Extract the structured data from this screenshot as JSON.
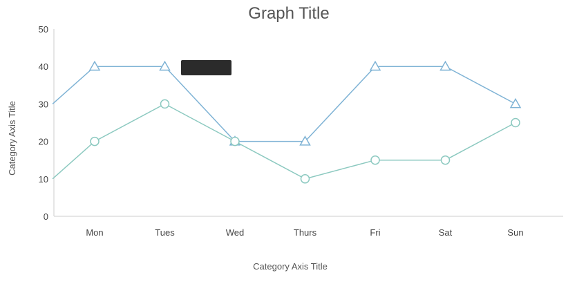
{
  "chart_data": {
    "type": "line",
    "title": "Graph Title",
    "xlabel": "Category Axis Title",
    "ylabel": "Category Axis Title",
    "categories": [
      "Mon",
      "Tues",
      "Wed",
      "Thurs",
      "Fri",
      "Sat",
      "Sun"
    ],
    "ylim": [
      0,
      50
    ],
    "yticks": [
      0,
      10,
      20,
      30,
      40,
      50
    ],
    "grid": false,
    "legend": "none",
    "series": [
      {
        "values": [
          30,
          40,
          40,
          20,
          20,
          40,
          40,
          30
        ],
        "x": [
          -0.6,
          0,
          1,
          2,
          3,
          4,
          5,
          6
        ],
        "color": "#7fb3d5",
        "marker": "triangle"
      },
      {
        "values": [
          10,
          20,
          30,
          20,
          10,
          15,
          15,
          25
        ],
        "x": [
          -0.6,
          0,
          1,
          2,
          3,
          4,
          5,
          6
        ],
        "color": "#8cc9c0",
        "marker": "circle"
      }
    ]
  },
  "colors": {
    "axis": "#cccccc",
    "text": "#555555",
    "tooltip": "#2b2b2b"
  }
}
